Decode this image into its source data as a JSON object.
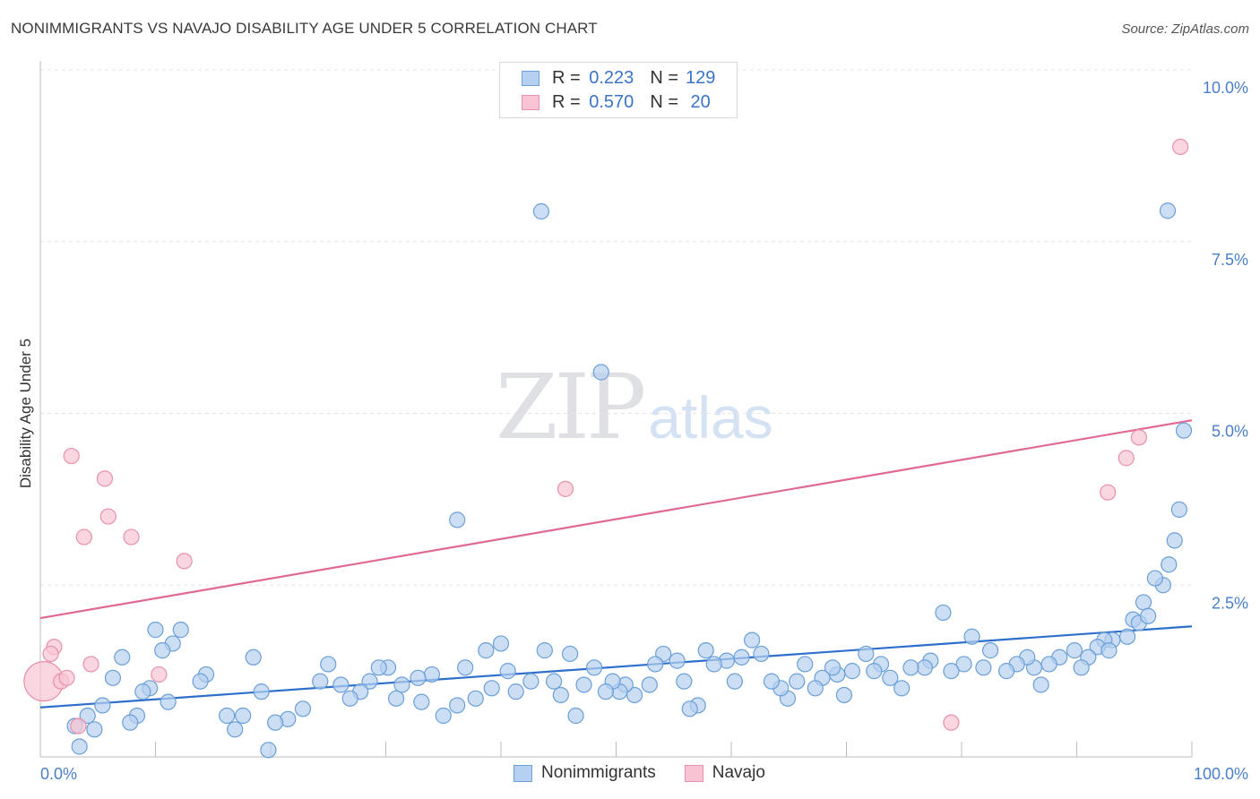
{
  "header": {
    "title": "NONIMMIGRANTS VS NAVAJO DISABILITY AGE UNDER 5 CORRELATION CHART",
    "source": "Source: ZipAtlas.com"
  },
  "legend_top": {
    "rows": [
      {
        "r_label": "R =",
        "r_value": "0.223",
        "n_label": "N =",
        "n_value": "129"
      },
      {
        "r_label": "R =",
        "r_value": "0.570",
        "n_label": "N =",
        "n_value": " 20"
      }
    ]
  },
  "watermark": {
    "zip": "ZIP",
    "atlas": "atlas"
  },
  "colors": {
    "blue_fill": "#b5d0f0",
    "blue_stroke": "#6a9fd8",
    "blue_line": "#2f6fcc",
    "pink_fill": "#f8c4d3",
    "pink_stroke": "#e890ab",
    "pink_line": "#e06894",
    "tick_text": "#4a7fc8",
    "grid": "#e4e4e4"
  },
  "chart_data": {
    "type": "scatter",
    "title": "NONIMMIGRANTS VS NAVAJO DISABILITY AGE UNDER 5 CORRELATION CHART",
    "xlabel": "",
    "ylabel": "Disability Age Under 5",
    "xlim": [
      0,
      100
    ],
    "ylim": [
      0,
      10
    ],
    "x_tick_labels": [
      "0.0%",
      "100.0%"
    ],
    "y_ticks": [
      2.5,
      5.0,
      7.5,
      10.0
    ],
    "y_tick_labels": [
      "2.5%",
      "5.0%",
      "7.5%",
      "10.0%"
    ],
    "grid": true,
    "legend_position": "bottom",
    "series": [
      {
        "name": "Nonimmigrants",
        "color": "#6a9fd8",
        "trend": {
          "x": [
            0,
            100
          ],
          "y": [
            0.72,
            1.9
          ]
        },
        "points": [
          [
            43.5,
            7.94
          ],
          [
            97.9,
            7.95
          ],
          [
            48.7,
            5.6
          ],
          [
            99.3,
            4.75
          ],
          [
            36.2,
            3.45
          ],
          [
            98.9,
            3.6
          ],
          [
            98.5,
            3.15
          ],
          [
            98.0,
            2.8
          ],
          [
            97.5,
            2.5
          ],
          [
            96.8,
            2.6
          ],
          [
            95.8,
            2.25
          ],
          [
            94.9,
            2.0
          ],
          [
            95.4,
            1.95
          ],
          [
            96.2,
            2.05
          ],
          [
            94.4,
            1.75
          ],
          [
            93.1,
            1.7
          ],
          [
            92.4,
            1.7
          ],
          [
            91.8,
            1.6
          ],
          [
            92.8,
            1.55
          ],
          [
            91.0,
            1.45
          ],
          [
            90.4,
            1.3
          ],
          [
            89.8,
            1.55
          ],
          [
            88.5,
            1.45
          ],
          [
            87.6,
            1.35
          ],
          [
            86.3,
            1.3
          ],
          [
            85.7,
            1.45
          ],
          [
            86.9,
            1.05
          ],
          [
            84.8,
            1.35
          ],
          [
            83.9,
            1.25
          ],
          [
            82.5,
            1.55
          ],
          [
            81.9,
            1.3
          ],
          [
            80.9,
            1.75
          ],
          [
            80.2,
            1.35
          ],
          [
            79.1,
            1.25
          ],
          [
            78.4,
            2.1
          ],
          [
            77.3,
            1.4
          ],
          [
            76.8,
            1.3
          ],
          [
            75.6,
            1.3
          ],
          [
            74.8,
            1.0
          ],
          [
            73.8,
            1.15
          ],
          [
            73.0,
            1.35
          ],
          [
            72.4,
            1.25
          ],
          [
            71.7,
            1.5
          ],
          [
            70.5,
            1.25
          ],
          [
            69.8,
            0.9
          ],
          [
            69.2,
            1.2
          ],
          [
            68.8,
            1.3
          ],
          [
            67.9,
            1.15
          ],
          [
            67.3,
            1.0
          ],
          [
            66.4,
            1.35
          ],
          [
            65.7,
            1.1
          ],
          [
            64.9,
            0.85
          ],
          [
            64.3,
            1.0
          ],
          [
            63.5,
            1.1
          ],
          [
            62.6,
            1.5
          ],
          [
            61.8,
            1.7
          ],
          [
            60.9,
            1.45
          ],
          [
            60.3,
            1.1
          ],
          [
            59.6,
            1.4
          ],
          [
            58.5,
            1.35
          ],
          [
            57.1,
            0.75
          ],
          [
            57.8,
            1.55
          ],
          [
            56.4,
            0.7
          ],
          [
            55.9,
            1.1
          ],
          [
            55.3,
            1.4
          ],
          [
            54.1,
            1.5
          ],
          [
            53.4,
            1.35
          ],
          [
            52.9,
            1.05
          ],
          [
            51.6,
            0.9
          ],
          [
            50.8,
            1.05
          ],
          [
            50.3,
            0.95
          ],
          [
            49.7,
            1.1
          ],
          [
            49.1,
            0.95
          ],
          [
            48.1,
            1.3
          ],
          [
            47.2,
            1.05
          ],
          [
            46.5,
            0.6
          ],
          [
            46.0,
            1.5
          ],
          [
            45.2,
            0.9
          ],
          [
            44.6,
            1.1
          ],
          [
            43.8,
            1.55
          ],
          [
            42.6,
            1.1
          ],
          [
            41.3,
            0.95
          ],
          [
            40.6,
            1.25
          ],
          [
            40.0,
            1.65
          ],
          [
            39.2,
            1.0
          ],
          [
            38.7,
            1.55
          ],
          [
            37.8,
            0.85
          ],
          [
            36.9,
            1.3
          ],
          [
            36.2,
            0.75
          ],
          [
            35.0,
            0.6
          ],
          [
            34.0,
            1.2
          ],
          [
            33.1,
            0.8
          ],
          [
            32.8,
            1.15
          ],
          [
            31.4,
            1.05
          ],
          [
            30.9,
            0.85
          ],
          [
            30.2,
            1.3
          ],
          [
            29.4,
            1.3
          ],
          [
            28.6,
            1.1
          ],
          [
            27.8,
            0.95
          ],
          [
            26.9,
            0.85
          ],
          [
            26.1,
            1.05
          ],
          [
            25.0,
            1.35
          ],
          [
            24.3,
            1.1
          ],
          [
            22.8,
            0.7
          ],
          [
            21.5,
            0.55
          ],
          [
            20.4,
            0.5
          ],
          [
            19.8,
            0.1
          ],
          [
            19.2,
            0.95
          ],
          [
            18.5,
            1.45
          ],
          [
            17.6,
            0.6
          ],
          [
            16.9,
            0.4
          ],
          [
            16.2,
            0.6
          ],
          [
            14.4,
            1.2
          ],
          [
            13.9,
            1.1
          ],
          [
            12.2,
            1.85
          ],
          [
            11.5,
            1.65
          ],
          [
            11.1,
            0.8
          ],
          [
            10.6,
            1.55
          ],
          [
            10.0,
            1.85
          ],
          [
            9.5,
            1.0
          ],
          [
            8.9,
            0.95
          ],
          [
            8.4,
            0.6
          ],
          [
            7.8,
            0.5
          ],
          [
            7.1,
            1.45
          ],
          [
            6.3,
            1.15
          ],
          [
            5.4,
            0.75
          ],
          [
            4.7,
            0.4
          ],
          [
            4.1,
            0.6
          ],
          [
            3.4,
            0.15
          ],
          [
            3.0,
            0.45
          ]
        ]
      },
      {
        "name": "Navajo",
        "color": "#e890ab",
        "trend": {
          "x": [
            0,
            100
          ],
          "y": [
            2.02,
            4.9
          ]
        },
        "points": [
          [
            0.3,
            1.1
          ],
          [
            1.2,
            1.6
          ],
          [
            0.9,
            1.5
          ],
          [
            1.8,
            1.1
          ],
          [
            2.3,
            1.15
          ],
          [
            2.7,
            4.38
          ],
          [
            3.8,
            3.2
          ],
          [
            4.4,
            1.35
          ],
          [
            3.3,
            0.45
          ],
          [
            5.6,
            4.05
          ],
          [
            5.9,
            3.5
          ],
          [
            7.9,
            3.2
          ],
          [
            10.3,
            1.2
          ],
          [
            12.5,
            2.85
          ],
          [
            45.6,
            3.9
          ],
          [
            79.1,
            0.5
          ],
          [
            92.7,
            3.85
          ],
          [
            94.3,
            4.35
          ],
          [
            95.4,
            4.65
          ],
          [
            99.0,
            8.88
          ]
        ]
      }
    ]
  },
  "bottom_legend": {
    "items": [
      {
        "label": "Nonimmigrants"
      },
      {
        "label": "Navajo"
      }
    ]
  }
}
